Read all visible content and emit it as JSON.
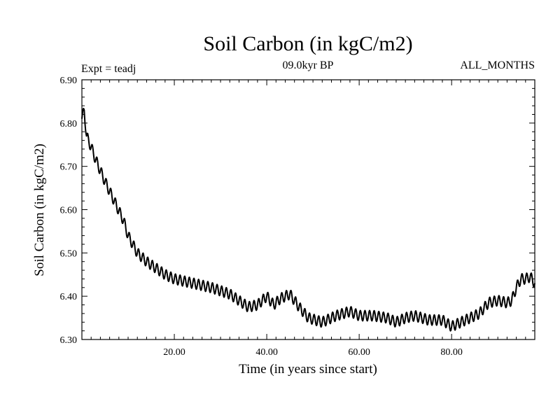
{
  "chart_data": {
    "type": "line",
    "title": "Soil Carbon (in kgC/m2)",
    "subtitle": "09.0kyr BP",
    "left_label": "Expt = teadj",
    "right_label": "ALL_MONTHS",
    "xlabel": "Time (in years since start)",
    "ylabel": "Soil Carbon (in kgC/m2)",
    "xlim": [
      0,
      98
    ],
    "ylim": [
      6.3,
      6.9
    ],
    "xticks": [
      20,
      40,
      60,
      80
    ],
    "xtick_labels": [
      "20.00",
      "40.00",
      "60.00",
      "80.00"
    ],
    "yticks": [
      6.3,
      6.4,
      6.5,
      6.6,
      6.7,
      6.8,
      6.9
    ],
    "ytick_labels": [
      "6.30",
      "6.40",
      "6.50",
      "6.60",
      "6.70",
      "6.80",
      "6.90"
    ],
    "series": [
      {
        "name": "Soil Carbon",
        "color": "#000000",
        "seasonal_amplitude": 0.012,
        "points_per_year": 12,
        "trend": [
          [
            0.0,
            6.81
          ],
          [
            0.5,
            6.83
          ],
          [
            1.0,
            6.77
          ],
          [
            2.0,
            6.745
          ],
          [
            3.0,
            6.715
          ],
          [
            5.0,
            6.665
          ],
          [
            7.0,
            6.62
          ],
          [
            9.0,
            6.575
          ],
          [
            10.0,
            6.54
          ],
          [
            12.0,
            6.5
          ],
          [
            14.0,
            6.48
          ],
          [
            16.0,
            6.465
          ],
          [
            18.0,
            6.45
          ],
          [
            20.0,
            6.44
          ],
          [
            24.0,
            6.43
          ],
          [
            28.0,
            6.42
          ],
          [
            32.0,
            6.405
          ],
          [
            34.0,
            6.39
          ],
          [
            36.0,
            6.375
          ],
          [
            38.0,
            6.38
          ],
          [
            40.0,
            6.4
          ],
          [
            41.5,
            6.38
          ],
          [
            43.0,
            6.395
          ],
          [
            45.0,
            6.405
          ],
          [
            47.0,
            6.375
          ],
          [
            49.0,
            6.35
          ],
          [
            52.0,
            6.34
          ],
          [
            55.0,
            6.355
          ],
          [
            58.0,
            6.365
          ],
          [
            60.0,
            6.355
          ],
          [
            63.0,
            6.355
          ],
          [
            66.0,
            6.35
          ],
          [
            68.0,
            6.34
          ],
          [
            70.0,
            6.35
          ],
          [
            72.0,
            6.355
          ],
          [
            75.0,
            6.345
          ],
          [
            78.0,
            6.345
          ],
          [
            80.0,
            6.33
          ],
          [
            82.0,
            6.34
          ],
          [
            84.0,
            6.35
          ],
          [
            86.0,
            6.36
          ],
          [
            88.0,
            6.385
          ],
          [
            90.0,
            6.39
          ],
          [
            92.0,
            6.385
          ],
          [
            93.0,
            6.39
          ],
          [
            94.0,
            6.42
          ],
          [
            95.0,
            6.44
          ],
          [
            96.0,
            6.44
          ],
          [
            97.0,
            6.445
          ],
          [
            98.0,
            6.43
          ]
        ]
      }
    ]
  }
}
